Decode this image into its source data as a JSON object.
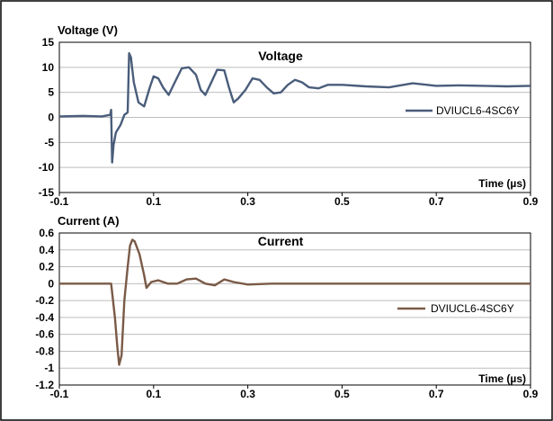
{
  "chart_data": [
    {
      "type": "line",
      "title": "Voltage",
      "ylabel": "Voltage (V)",
      "xlabel": "Time (µs)",
      "xlim": [
        -0.1,
        0.9
      ],
      "ylim": [
        -15,
        15
      ],
      "x_ticks": [
        "-0.1",
        "0.1",
        "0.3",
        "0.5",
        "0.7",
        "0.9"
      ],
      "y_ticks": [
        "15",
        "10",
        "5",
        "0",
        "-5",
        "-10",
        "-15"
      ],
      "grid": true,
      "legend_position": "right",
      "series": [
        {
          "name": "DVIUCL6-4SC6Y",
          "color": "#4a5d7a",
          "points": [
            [
              -0.1,
              0.2
            ],
            [
              -0.05,
              0.3
            ],
            [
              -0.01,
              0.2
            ],
            [
              0.008,
              0.5
            ],
            [
              0.01,
              1.5
            ],
            [
              0.012,
              -9.0
            ],
            [
              0.015,
              -5.5
            ],
            [
              0.02,
              -3.0
            ],
            [
              0.03,
              -1.5
            ],
            [
              0.038,
              0.5
            ],
            [
              0.045,
              1.0
            ],
            [
              0.048,
              12.8
            ],
            [
              0.052,
              12.0
            ],
            [
              0.058,
              7.0
            ],
            [
              0.068,
              3.0
            ],
            [
              0.08,
              2.2
            ],
            [
              0.092,
              6.0
            ],
            [
              0.1,
              8.2
            ],
            [
              0.11,
              7.8
            ],
            [
              0.12,
              6.0
            ],
            [
              0.132,
              4.5
            ],
            [
              0.145,
              7.0
            ],
            [
              0.16,
              9.8
            ],
            [
              0.175,
              10.0
            ],
            [
              0.19,
              8.5
            ],
            [
              0.2,
              5.5
            ],
            [
              0.21,
              4.5
            ],
            [
              0.22,
              6.5
            ],
            [
              0.235,
              9.5
            ],
            [
              0.25,
              9.4
            ],
            [
              0.26,
              6.0
            ],
            [
              0.27,
              3.0
            ],
            [
              0.28,
              3.8
            ],
            [
              0.295,
              5.5
            ],
            [
              0.31,
              7.8
            ],
            [
              0.325,
              7.5
            ],
            [
              0.34,
              6.0
            ],
            [
              0.355,
              4.8
            ],
            [
              0.37,
              5.0
            ],
            [
              0.385,
              6.5
            ],
            [
              0.4,
              7.5
            ],
            [
              0.415,
              7.0
            ],
            [
              0.43,
              6.0
            ],
            [
              0.45,
              5.8
            ],
            [
              0.47,
              6.5
            ],
            [
              0.5,
              6.5
            ],
            [
              0.55,
              6.2
            ],
            [
              0.6,
              6.0
            ],
            [
              0.65,
              6.8
            ],
            [
              0.7,
              6.3
            ],
            [
              0.75,
              6.4
            ],
            [
              0.8,
              6.3
            ],
            [
              0.85,
              6.2
            ],
            [
              0.9,
              6.3
            ]
          ]
        }
      ]
    },
    {
      "type": "line",
      "title": "Current",
      "ylabel": "Current (A)",
      "xlabel": "Time (µs)",
      "xlim": [
        -0.1,
        0.9
      ],
      "ylim": [
        -1.2,
        0.6
      ],
      "x_ticks": [
        "-0.1",
        "0.1",
        "0.3",
        "0.5",
        "0.7",
        "0.9"
      ],
      "y_ticks": [
        "0.6",
        "0.4",
        "0.2",
        "0",
        "-0.2",
        "-0.4",
        "-0.6",
        "-0.8",
        "-1",
        "-1.2"
      ],
      "grid": true,
      "legend_position": "right",
      "series": [
        {
          "name": "DVIUCL6-4SC6Y",
          "color": "#7a5a47",
          "points": [
            [
              -0.1,
              0.0
            ],
            [
              -0.05,
              0.0
            ],
            [
              0.0,
              0.0
            ],
            [
              0.01,
              0.0
            ],
            [
              0.018,
              -0.4
            ],
            [
              0.023,
              -0.75
            ],
            [
              0.027,
              -0.96
            ],
            [
              0.032,
              -0.85
            ],
            [
              0.038,
              -0.2
            ],
            [
              0.045,
              0.2
            ],
            [
              0.05,
              0.45
            ],
            [
              0.055,
              0.52
            ],
            [
              0.06,
              0.5
            ],
            [
              0.07,
              0.35
            ],
            [
              0.08,
              0.1
            ],
            [
              0.085,
              -0.05
            ],
            [
              0.095,
              0.02
            ],
            [
              0.11,
              0.04
            ],
            [
              0.13,
              0.0
            ],
            [
              0.15,
              0.0
            ],
            [
              0.17,
              0.05
            ],
            [
              0.19,
              0.06
            ],
            [
              0.21,
              0.0
            ],
            [
              0.23,
              -0.02
            ],
            [
              0.25,
              0.05
            ],
            [
              0.27,
              0.02
            ],
            [
              0.3,
              -0.01
            ],
            [
              0.35,
              0.0
            ],
            [
              0.4,
              0.0
            ],
            [
              0.5,
              0.0
            ],
            [
              0.6,
              0.0
            ],
            [
              0.7,
              0.0
            ],
            [
              0.8,
              0.0
            ],
            [
              0.9,
              0.0
            ]
          ]
        }
      ]
    }
  ]
}
